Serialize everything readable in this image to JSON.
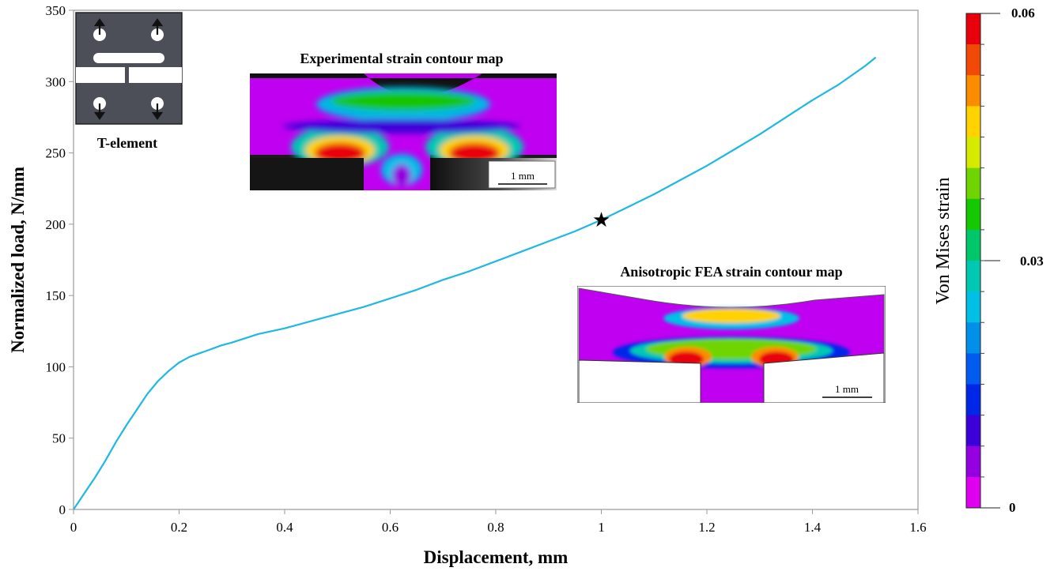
{
  "chart_data": {
    "type": "line",
    "xlabel": "Displacement, mm",
    "ylabel": "Normalized load, N/mm",
    "xlim": [
      0,
      1.6
    ],
    "ylim": [
      0,
      350
    ],
    "xticks": [
      0,
      0.2,
      0.4,
      0.6,
      0.8,
      1,
      1.2,
      1.4,
      1.6
    ],
    "yticks": [
      0,
      50,
      100,
      150,
      200,
      250,
      300,
      350
    ],
    "grid": false,
    "series": [
      {
        "color": "#1fb8e2",
        "x": [
          0,
          0.02,
          0.04,
          0.06,
          0.08,
          0.1,
          0.12,
          0.14,
          0.16,
          0.18,
          0.2,
          0.22,
          0.25,
          0.28,
          0.3,
          0.35,
          0.4,
          0.45,
          0.5,
          0.55,
          0.6,
          0.65,
          0.7,
          0.75,
          0.8,
          0.85,
          0.9,
          0.95,
          1.0,
          1.05,
          1.1,
          1.15,
          1.2,
          1.25,
          1.3,
          1.35,
          1.4,
          1.45,
          1.5,
          1.52
        ],
        "y": [
          0,
          11,
          22,
          34,
          47,
          59,
          70,
          81,
          90,
          97,
          103,
          107,
          111,
          115,
          117,
          123,
          127,
          132,
          137,
          142,
          148,
          154,
          161,
          167,
          174,
          181,
          188,
          195,
          203,
          212,
          221,
          231,
          241,
          252,
          263,
          275,
          287,
          298,
          311,
          317
        ]
      }
    ],
    "marker": {
      "x": 1.0,
      "y": 203,
      "symbol": "★"
    },
    "colorbar": {
      "label": "Von Mises strain",
      "ticks": [
        "0.06",
        "0.03",
        "0"
      ],
      "colors": [
        "#e8000a",
        "#f24a06",
        "#fb8c00",
        "#ffd200",
        "#d6ea00",
        "#6fd400",
        "#16c800",
        "#00c86a",
        "#00c8b3",
        "#00c0e6",
        "#0090ea",
        "#005cf0",
        "#0026e8",
        "#3c00d8",
        "#9400e0",
        "#e000f0"
      ]
    }
  },
  "insets": {
    "schematic_caption": "T-element",
    "experimental_title": "Experimental strain contour map",
    "experimental_scale": "1 mm",
    "fea_title": "Anisotropic FEA strain contour map",
    "fea_scale": "1 mm"
  }
}
